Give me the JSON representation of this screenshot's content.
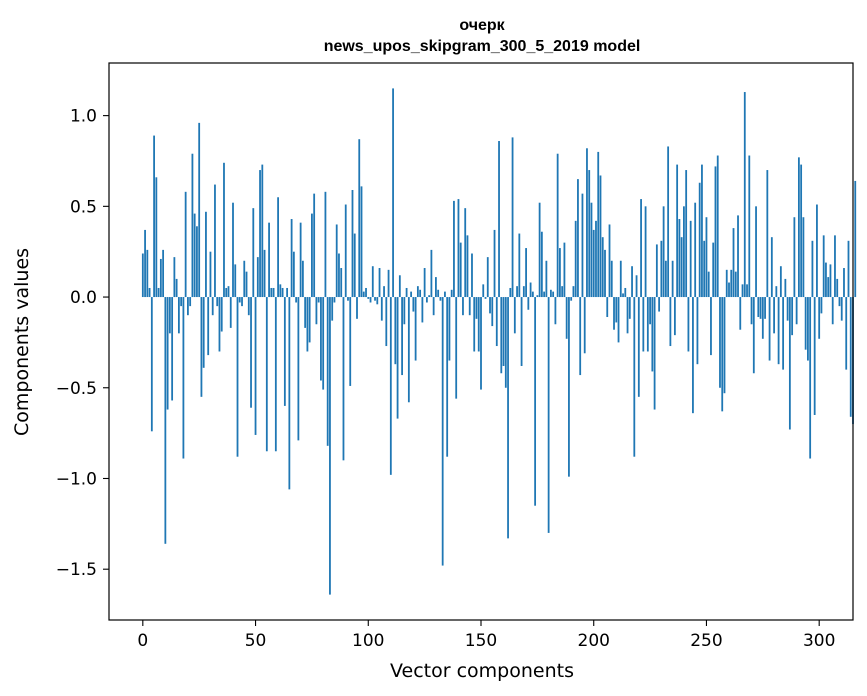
{
  "chart_data": {
    "type": "bar",
    "title_lines": [
      "очерк",
      "news_upos_skipgram_300_5_2019 model"
    ],
    "xlabel": "Vector components",
    "ylabel": "Components values",
    "xlim": [
      -15,
      315
    ],
    "ylim": [
      -1.78,
      1.29
    ],
    "x_ticks": [
      0,
      50,
      100,
      150,
      200,
      250,
      300
    ],
    "x_tick_labels": [
      "0",
      "50",
      "100",
      "150",
      "200",
      "250",
      "300"
    ],
    "y_ticks": [
      -1.5,
      -1.0,
      -0.5,
      0.0,
      0.5,
      1.0
    ],
    "y_tick_labels": [
      "−1.5",
      "−1.0",
      "−0.5",
      "0.0",
      "0.5",
      "1.0"
    ],
    "grid": false,
    "bar_color": "#1f77b4",
    "x_start": 0,
    "values": [
      0.24,
      0.37,
      0.26,
      0.05,
      -0.74,
      0.89,
      0.66,
      0.05,
      0.21,
      0.26,
      -1.36,
      -0.62,
      -0.2,
      -0.57,
      0.22,
      0.1,
      -0.2,
      -0.05,
      -0.89,
      0.58,
      -0.1,
      -0.05,
      0.79,
      0.46,
      0.39,
      0.96,
      -0.55,
      -0.39,
      0.47,
      -0.32,
      0.25,
      -0.1,
      0.62,
      -0.05,
      -0.3,
      -0.19,
      0.74,
      0.05,
      0.06,
      -0.17,
      0.52,
      0.18,
      -0.88,
      -0.03,
      -0.05,
      0.2,
      0.14,
      -0.1,
      -0.61,
      0.49,
      -0.76,
      0.22,
      0.7,
      0.73,
      0.26,
      -0.85,
      0.41,
      0.05,
      0.05,
      -0.85,
      0.55,
      0.07,
      0.05,
      -0.6,
      0.05,
      -1.06,
      0.43,
      0.25,
      -0.03,
      -0.79,
      0.41,
      0.2,
      -0.17,
      -0.3,
      -0.25,
      0.46,
      0.57,
      -0.15,
      -0.03,
      -0.46,
      -0.51,
      0.58,
      -0.82,
      -1.64,
      -0.13,
      -0.03,
      0.4,
      0.24,
      0.16,
      -0.9,
      0.51,
      -0.02,
      -0.49,
      0.59,
      0.35,
      -0.12,
      0.87,
      0.61,
      0.03,
      0.05,
      -0.01,
      -0.03,
      0.17,
      -0.02,
      -0.04,
      0.16,
      -0.13,
      0.06,
      -0.27,
      0.15,
      -0.98,
      1.15,
      -0.37,
      -0.67,
      0.12,
      -0.43,
      -0.15,
      0.05,
      -0.58,
      0.03,
      -0.08,
      -0.35,
      0.06,
      0.04,
      -0.14,
      0.16,
      -0.03,
      0.01,
      0.26,
      -0.1,
      0.11,
      0.04,
      -0.02,
      -1.48,
      0.03,
      -0.88,
      -0.35,
      0.04,
      0.53,
      -0.56,
      0.54,
      0.3,
      -0.1,
      0.49,
      0.34,
      -0.1,
      0.24,
      -0.3,
      -0.12,
      -0.3,
      -0.51,
      0.07,
      -0.01,
      0.22,
      -0.09,
      -0.16,
      0.37,
      -0.27,
      0.86,
      -0.42,
      -0.38,
      -0.5,
      -1.33,
      0.05,
      0.88,
      -0.2,
      0.06,
      0.35,
      -0.38,
      0.06,
      0.27,
      -0.07,
      0.08,
      0.03,
      -1.15,
      0.01,
      0.52,
      0.36,
      0.03,
      0.2,
      -1.3,
      0.04,
      0.03,
      -0.15,
      0.79,
      0.27,
      0.06,
      0.3,
      -0.23,
      -0.99,
      -0.02,
      0.06,
      0.42,
      0.65,
      -0.43,
      0.57,
      -0.31,
      0.82,
      0.7,
      0.52,
      0.37,
      0.42,
      0.8,
      0.67,
      0.33,
      0.26,
      -0.11,
      0.4,
      0.2,
      -0.18,
      -0.14,
      -0.25,
      0.2,
      0.02,
      0.05,
      -0.2,
      -0.12,
      0.17,
      -0.88,
      0.12,
      -0.55,
      0.54,
      -0.3,
      0.5,
      -0.3,
      -0.15,
      -0.41,
      -0.62,
      0.29,
      -0.08,
      0.31,
      0.5,
      0.2,
      0.83,
      -0.27,
      0.2,
      -0.21,
      0.73,
      0.43,
      0.33,
      0.5,
      0.7,
      -0.3,
      0.42,
      -0.64,
      0.52,
      -0.37,
      0.63,
      0.73,
      0.31,
      0.44,
      0.14,
      -0.32,
      0.3,
      0.72,
      0.78,
      -0.5,
      -0.63,
      -0.53,
      0.15,
      0.08,
      0.15,
      0.38,
      0.14,
      0.45,
      -0.18,
      0.07,
      1.13,
      0.07,
      0.78,
      -0.15,
      -0.42,
      0.5,
      -0.11,
      -0.12,
      -0.23,
      -0.12,
      0.7,
      -0.35,
      0.33,
      -0.2,
      0.06,
      -0.37,
      0.17,
      -0.4,
      0.1,
      -0.13,
      -0.73,
      -0.21,
      0.44,
      -0.15,
      0.77,
      0.73,
      0.44,
      -0.29,
      -0.35,
      -0.89,
      0.31,
      -0.65,
      0.51,
      -0.23,
      -0.09,
      0.34,
      0.19,
      0.11,
      0.18,
      -0.15,
      0.34,
      0.1,
      -0.05,
      -0.13,
      0.16,
      -0.4,
      0.31,
      -0.66,
      -0.7,
      0.64
    ]
  }
}
